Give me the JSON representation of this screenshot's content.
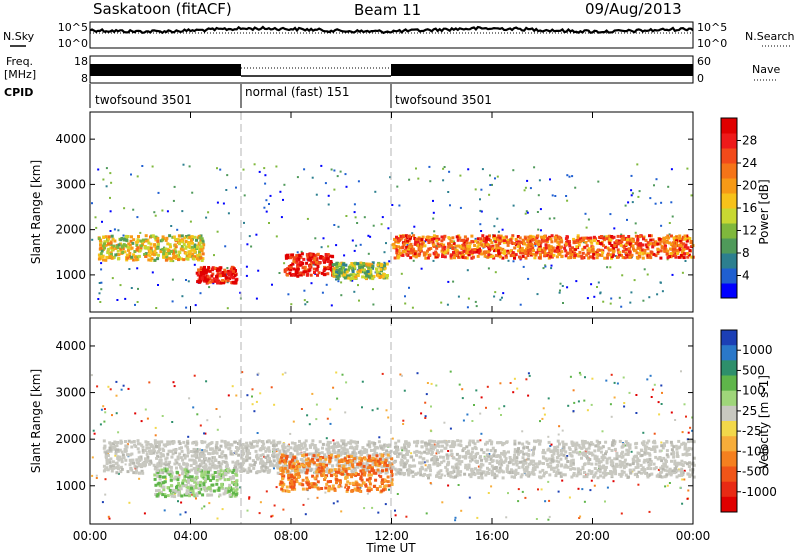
{
  "header": {
    "radar": "Saskatoon (fitACF)",
    "beam": "Beam 11",
    "date": "09/Aug/2013"
  },
  "noise_panel": {
    "left_label": "N.Sky",
    "right_label": "N.Search",
    "left_ticks": [
      "10^5",
      "10^0"
    ],
    "right_ticks": [
      "10^5",
      "10^0"
    ]
  },
  "freq_panel": {
    "left_label_line1": "Freq.",
    "left_label_line2": "[MHz]",
    "right_label": "Nave",
    "left_ticks": [
      "18",
      "8"
    ],
    "right_ticks": [
      "60",
      "0"
    ]
  },
  "cpid_panel": {
    "label": "CPID",
    "segments": [
      {
        "name": "twofsound 3501",
        "start_hour": 0,
        "end_hour": 6
      },
      {
        "name": "normal (fast) 151",
        "start_hour": 6,
        "end_hour": 12
      },
      {
        "name": "twofsound 3501",
        "start_hour": 12,
        "end_hour": 24
      }
    ]
  },
  "chart_data": [
    {
      "type": "heatmap",
      "name": "power",
      "ylabel": "Slant Range [km]",
      "xlabel": "",
      "ylim": [
        180,
        4600
      ],
      "xlim": [
        0,
        24
      ],
      "yticks": [
        "1000",
        "2000",
        "3000",
        "4000"
      ],
      "colorbar": {
        "label": "Power [dB]",
        "ticks": [
          "4",
          "8",
          "12",
          "16",
          "20",
          "24",
          "28"
        ],
        "colors": [
          "#0000ff",
          "#1f5fd1",
          "#2c7f8f",
          "#4f9a5a",
          "#7fb83c",
          "#c8d832",
          "#f7c21a",
          "#f79a16",
          "#f57418",
          "#f24a1a",
          "#ee1a1a",
          "#e00000"
        ]
      },
      "bands": [
        {
          "t": [
            0.3,
            4.5
          ],
          "range": [
            1350,
            1900
          ],
          "level": 6
        },
        {
          "t": [
            4.2,
            5.8
          ],
          "range": [
            850,
            1200
          ],
          "level": 11
        },
        {
          "t": [
            7.7,
            9.6
          ],
          "range": [
            1000,
            1500
          ],
          "level": 11
        },
        {
          "t": [
            9.6,
            11.8
          ],
          "range": [
            950,
            1300
          ],
          "level": 5
        },
        {
          "t": [
            12.0,
            24.0
          ],
          "range": [
            1400,
            1900
          ],
          "level": 9
        }
      ]
    },
    {
      "type": "heatmap",
      "name": "velocity",
      "ylabel": "Slant Range [km]",
      "xlabel": "Time UT",
      "ylim": [
        180,
        4600
      ],
      "xlim": [
        0,
        24
      ],
      "yticks": [
        "1000",
        "2000",
        "3000",
        "4000"
      ],
      "xticks": [
        "00:00",
        "04:00",
        "08:00",
        "12:00",
        "16:00",
        "20:00",
        "00:00"
      ],
      "colorbar": {
        "label": "Velocity [m s-1]",
        "ticks": [
          "1000",
          "500",
          "100",
          "25",
          "-25",
          "-100",
          "-500",
          "-1000"
        ],
        "colors": [
          "#1c3fb5",
          "#2a78c9",
          "#2e8f6b",
          "#5fb54a",
          "#9fd67a",
          "#c8c8c0",
          "#f2d84a",
          "#f7ad3a",
          "#f5801f",
          "#f05518",
          "#e82a14",
          "#e00000"
        ]
      },
      "bands": [
        {
          "t": [
            0.5,
            12.0
          ],
          "range": [
            1300,
            2000
          ],
          "level": "ground"
        },
        {
          "t": [
            2.5,
            5.8
          ],
          "range": [
            800,
            1400
          ],
          "level": 100
        },
        {
          "t": [
            7.5,
            12.0
          ],
          "range": [
            900,
            1700
          ],
          "level": -500
        },
        {
          "t": [
            12.0,
            24.0
          ],
          "range": [
            1200,
            2000
          ],
          "level": "ground"
        }
      ]
    }
  ]
}
